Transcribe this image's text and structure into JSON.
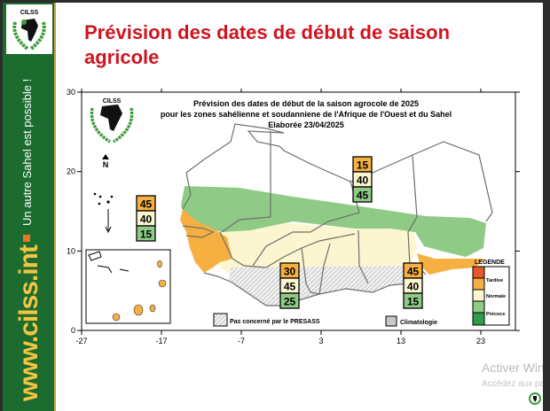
{
  "slide": {
    "title": "Prévision des dates de début de saison agricole",
    "band_tagline": "Un autre Sahel est possible !",
    "band_url": "www.cilss.int",
    "logo_text": "CILSS"
  },
  "map": {
    "title_lines": [
      "Prévision des dates de début de la saison agrocole de 2025",
      "pour les zones sahélienne et soudanniene de l'Afrique de l'Ouest et du Sahel",
      "Elaborée 23/04/2025"
    ],
    "logo_text": "CILSS",
    "north_label": "N",
    "x_ticks": [
      "-27",
      "-17",
      "-7",
      "3",
      "13",
      "23"
    ],
    "y_ticks": [
      "30",
      "20",
      "10",
      "0"
    ],
    "probability_boxes": [
      {
        "zone": "west",
        "tardive": "45",
        "normale": "40",
        "precoce": "15"
      },
      {
        "zone": "north-east",
        "tardive": "15",
        "normale": "40",
        "precoce": "45"
      },
      {
        "zone": "south-center",
        "tardive": "30",
        "normale": "45",
        "precoce": "25"
      },
      {
        "zone": "south-east",
        "tardive": "45",
        "normale": "40",
        "precoce": "15"
      }
    ],
    "legend": {
      "title": "LEGENDE",
      "items": [
        {
          "label": "Tardive",
          "colors": [
            "#e8572a",
            "#f6b042"
          ]
        },
        {
          "label": "Normale",
          "colors": [
            "#fbf6cf"
          ]
        },
        {
          "label": "Précoce",
          "colors": [
            "#8fcb86",
            "#2e9c48"
          ]
        }
      ]
    },
    "not_concerned_label": "Pas concerné par le PRESASS",
    "climatology_label": "Climatologie",
    "colors": {
      "tardive": "#f6b042",
      "normale": "#fbf6cf",
      "precoce": "#8fcb86",
      "border": "#6e6e6e"
    }
  },
  "watermark": {
    "line1": "Activer Windows",
    "line2": "Accédez aux paramètres pour activer Windows."
  }
}
